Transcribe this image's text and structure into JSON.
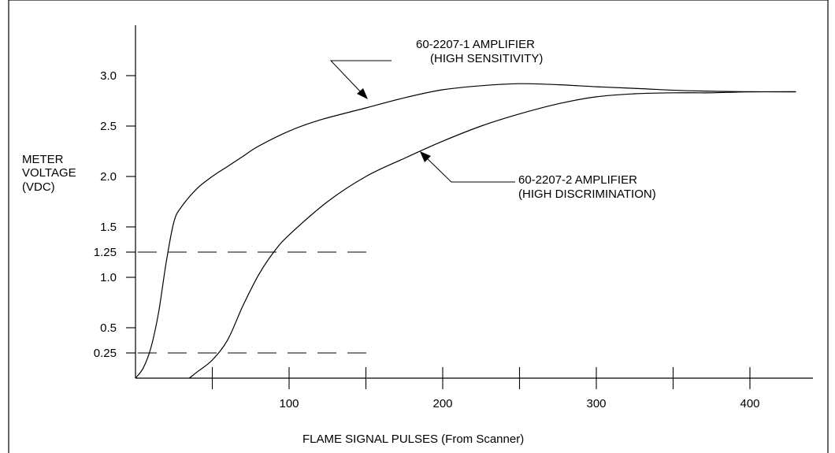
{
  "chart_data": {
    "type": "line",
    "title": "",
    "xlabel": "FLAME SIGNAL PULSES (From Scanner)",
    "ylabel": [
      "METER",
      "VOLTAGE",
      "(VDC)"
    ],
    "xlim": [
      0,
      450
    ],
    "ylim": [
      0,
      3.5
    ],
    "x_ticks": [
      50,
      100,
      150,
      200,
      250,
      300,
      350,
      400
    ],
    "x_tick_labels": [
      {
        "value": 100,
        "label": "100"
      },
      {
        "value": 200,
        "label": "200"
      },
      {
        "value": 300,
        "label": "300"
      },
      {
        "value": 400,
        "label": "400"
      }
    ],
    "y_ticks": [
      {
        "value": 3.0,
        "label": "3.0"
      },
      {
        "value": 2.5,
        "label": "2.5"
      },
      {
        "value": 2.0,
        "label": "2.0"
      },
      {
        "value": 1.5,
        "label": "1.5"
      },
      {
        "value": 1.25,
        "label": "1.25"
      },
      {
        "value": 1.0,
        "label": "1.0"
      },
      {
        "value": 0.5,
        "label": "0.5"
      },
      {
        "value": 0.25,
        "label": "0.25"
      }
    ],
    "grid": false,
    "series": [
      {
        "name": "60-2207-1 AMPLIFIER (HIGH SENSITIVITY)",
        "x": [
          0,
          5,
          10,
          15,
          20,
          25,
          30,
          40,
          50,
          60,
          70,
          80,
          100,
          120,
          150,
          175,
          200,
          225,
          250,
          275,
          300,
          330,
          360,
          400,
          430
        ],
        "y": [
          0,
          0.1,
          0.3,
          0.65,
          1.15,
          1.55,
          1.7,
          1.88,
          2.0,
          2.1,
          2.2,
          2.3,
          2.45,
          2.56,
          2.68,
          2.78,
          2.86,
          2.9,
          2.92,
          2.91,
          2.89,
          2.87,
          2.85,
          2.84,
          2.84
        ]
      },
      {
        "name": "60-2207-2 AMPLIFIER (HIGH DISCRIMINATION)",
        "x": [
          35,
          40,
          50,
          60,
          70,
          80,
          90,
          100,
          125,
          150,
          175,
          200,
          225,
          250,
          275,
          300,
          325,
          350,
          375,
          400,
          430
        ],
        "y": [
          0,
          0.06,
          0.18,
          0.38,
          0.72,
          1.02,
          1.25,
          1.42,
          1.75,
          2.0,
          2.18,
          2.35,
          2.5,
          2.62,
          2.72,
          2.79,
          2.82,
          2.83,
          2.83,
          2.84,
          2.84
        ]
      }
    ],
    "reference_lines": [
      {
        "y": 1.25,
        "x_range": [
          0,
          155
        ],
        "style": "dashed"
      },
      {
        "y": 0.25,
        "x_range": [
          0,
          155
        ],
        "style": "dashed"
      }
    ],
    "annotations": [
      {
        "lines": [
          "60-2207-1 AMPLIFIER",
          "(HIGH SENSITIVITY)"
        ],
        "series": 0
      },
      {
        "lines": [
          "60-2207-2 AMPLIFIER",
          "(HIGH DISCRIMINATION)"
        ],
        "series": 1
      }
    ]
  },
  "colors": {
    "ink": "#000000",
    "background": "#ffffff"
  }
}
